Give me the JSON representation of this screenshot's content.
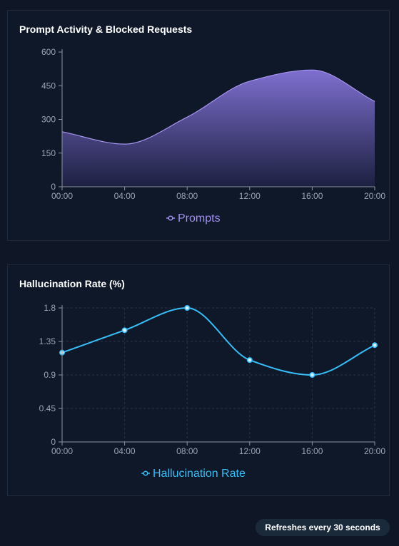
{
  "footer": {
    "refresh_text": "Refreshes every 30 seconds"
  },
  "chart_data": [
    {
      "type": "area",
      "title": "Prompt Activity & Blocked Requests",
      "x": [
        "00:00",
        "04:00",
        "08:00",
        "12:00",
        "16:00",
        "20:00"
      ],
      "series": [
        {
          "name": "Prompts",
          "values": [
            245,
            190,
            310,
            470,
            520,
            380
          ]
        }
      ],
      "yticks": [
        "0",
        "150",
        "300",
        "450",
        "600"
      ],
      "ylim": [
        0,
        600
      ],
      "grid": false,
      "legend": "bottom",
      "colors": {
        "line": "#a795f0",
        "fill_top": "#7e6fd0",
        "fill_bottom": "#1c2040",
        "legend": "#a18ff0"
      }
    },
    {
      "type": "line",
      "title": "Hallucination Rate (%)",
      "x": [
        "00:00",
        "04:00",
        "08:00",
        "12:00",
        "16:00",
        "20:00"
      ],
      "series": [
        {
          "name": "Hallucination Rate",
          "values": [
            1.2,
            1.5,
            1.8,
            1.1,
            0.9,
            1.3
          ]
        }
      ],
      "yticks": [
        "0",
        "0.45",
        "0.9",
        "1.35",
        "1.8"
      ],
      "ylim": [
        0,
        1.8
      ],
      "grid": true,
      "legend": "bottom",
      "colors": {
        "line": "#38bdf8",
        "legend": "#38bdf8",
        "grid": "#2a3346"
      }
    }
  ]
}
